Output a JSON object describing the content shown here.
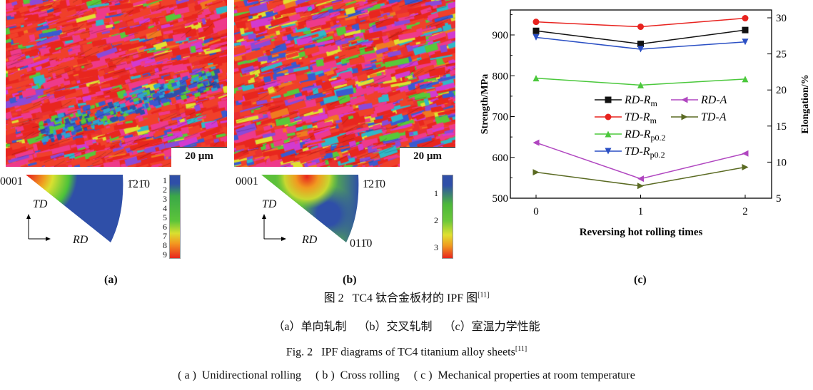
{
  "panels": {
    "a": {
      "label": "(a)",
      "scale_bar": "20 μm",
      "ipf_corners": [
        "0001",
        "1̄21̄0"
      ],
      "axes": [
        "TD",
        "RD"
      ],
      "colorbar_ticks": [
        "1",
        "2",
        "3",
        "4",
        "5",
        "6",
        "7",
        "8",
        "9"
      ]
    },
    "b": {
      "label": "(b)",
      "scale_bar": "20 μm",
      "ipf_corners": [
        "0001",
        "1̄21̄0",
        "011̄0"
      ],
      "axes": [
        "TD",
        "RD"
      ],
      "colorbar_ticks": [
        "1",
        "2",
        "3"
      ]
    },
    "c": {
      "label": "(c)"
    }
  },
  "colors": {
    "ipf_low": "#2f4fa8",
    "ipf_mid": "#4cc23a",
    "ipf_high": "#e8261e"
  },
  "chart_data": {
    "type": "line",
    "x": [
      0,
      1,
      2
    ],
    "xlabel": "Reversing hot rolling times",
    "ylabel": "Strength/MPa",
    "y2label": "Elongation/%",
    "ylim": [
      500,
      960
    ],
    "y2lim": [
      5,
      30.5
    ],
    "yticks": [
      "500",
      "600",
      "700",
      "800",
      "900"
    ],
    "y2ticks": [
      "5",
      "10",
      "15",
      "20",
      "25",
      "30"
    ],
    "xticks": [
      "0",
      "1",
      "2"
    ],
    "legend": "center",
    "series": [
      {
        "name": "RD-Rm",
        "axis": "left",
        "color": "#111111",
        "marker": "square",
        "values": [
          910,
          878,
          912
        ]
      },
      {
        "name": "TD-Rm",
        "axis": "left",
        "color": "#e8231f",
        "marker": "circle",
        "values": [
          932,
          920,
          941
        ]
      },
      {
        "name": "RD-Rp0.2",
        "axis": "left",
        "color": "#4bc83c",
        "marker": "triangle-up",
        "values": [
          794,
          777,
          792
        ]
      },
      {
        "name": "TD-Rp0.2",
        "axis": "left",
        "color": "#2a4fc4",
        "marker": "triangle-down",
        "values": [
          894,
          865,
          883
        ]
      },
      {
        "name": "RD-A",
        "axis": "right",
        "color": "#b046c0",
        "marker": "triangle-left",
        "values": [
          12.7,
          7.7,
          11.2
        ]
      },
      {
        "name": "TD-A",
        "axis": "right",
        "color": "#5a6a22",
        "marker": "triangle-right",
        "values": [
          8.6,
          6.7,
          9.3
        ]
      }
    ]
  },
  "captions": {
    "zh_title": "图 2   TC4 钛合金板材的 IPF 图",
    "zh_ref": "[11]",
    "zh_sub": "（a）单向轧制    （b）交叉轧制    （c）室温力学性能",
    "en_title": "Fig. 2   IPF diagrams of TC4 titanium alloy sheets",
    "en_ref": "[11]",
    "en_sub": "( a )  Unidirectional rolling     ( b )  Cross rolling     ( c )  Mechanical properties at room temperature"
  }
}
